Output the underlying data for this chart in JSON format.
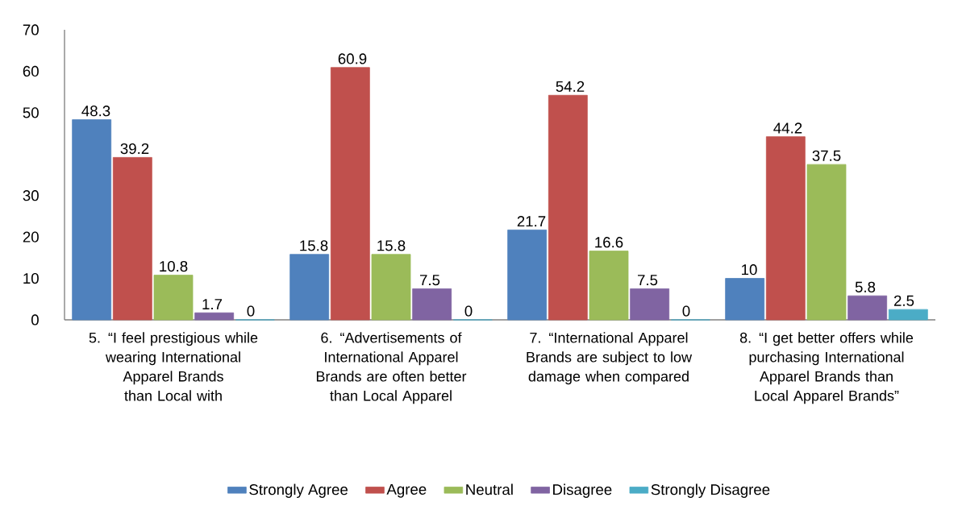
{
  "chart_data": {
    "type": "bar",
    "categories": [
      "5. “I feel prestigious while wearing International Apparel Brands than Local with",
      "6. “Advertisements of International Apparel Brands are often better than Local Apparel",
      "7. “International Apparel Brands are subject to low damage when compared",
      "8. “I get better offers while purchasing International Apparel Brands than Local Apparel Brands”"
    ],
    "series": [
      {
        "name": "Strongly Agree",
        "color": "#4f81bd",
        "values": [
          48.3,
          15.8,
          21.7,
          10
        ],
        "value_labels": [
          "48.3",
          "15.8",
          "21.7",
          "10"
        ]
      },
      {
        "name": "Agree",
        "color": "#c0504d",
        "values": [
          39.2,
          60.9,
          54.2,
          44.2
        ],
        "value_labels": [
          "39.2",
          "60.9",
          "54.2",
          "44.2"
        ]
      },
      {
        "name": "Neutral",
        "color": "#9bbb59",
        "values": [
          10.8,
          15.8,
          16.6,
          37.5
        ],
        "value_labels": [
          "10.8",
          "15.8",
          "16.6",
          "37.5"
        ]
      },
      {
        "name": "Disagree",
        "color": "#8064a2",
        "values": [
          1.7,
          7.5,
          7.5,
          5.8
        ],
        "value_labels": [
          "1.7",
          "7.5",
          "7.5",
          "5.8"
        ]
      },
      {
        "name": "Strongly Disagree",
        "color": "#4bacc6",
        "values": [
          0,
          0,
          0,
          2.5
        ],
        "value_labels": [
          "0",
          "0",
          "0",
          "2.5"
        ]
      }
    ],
    "ylim": [
      0,
      70
    ],
    "yticks": [
      0,
      10,
      20,
      30,
      50,
      60,
      70
    ],
    "legend": "bottom"
  }
}
